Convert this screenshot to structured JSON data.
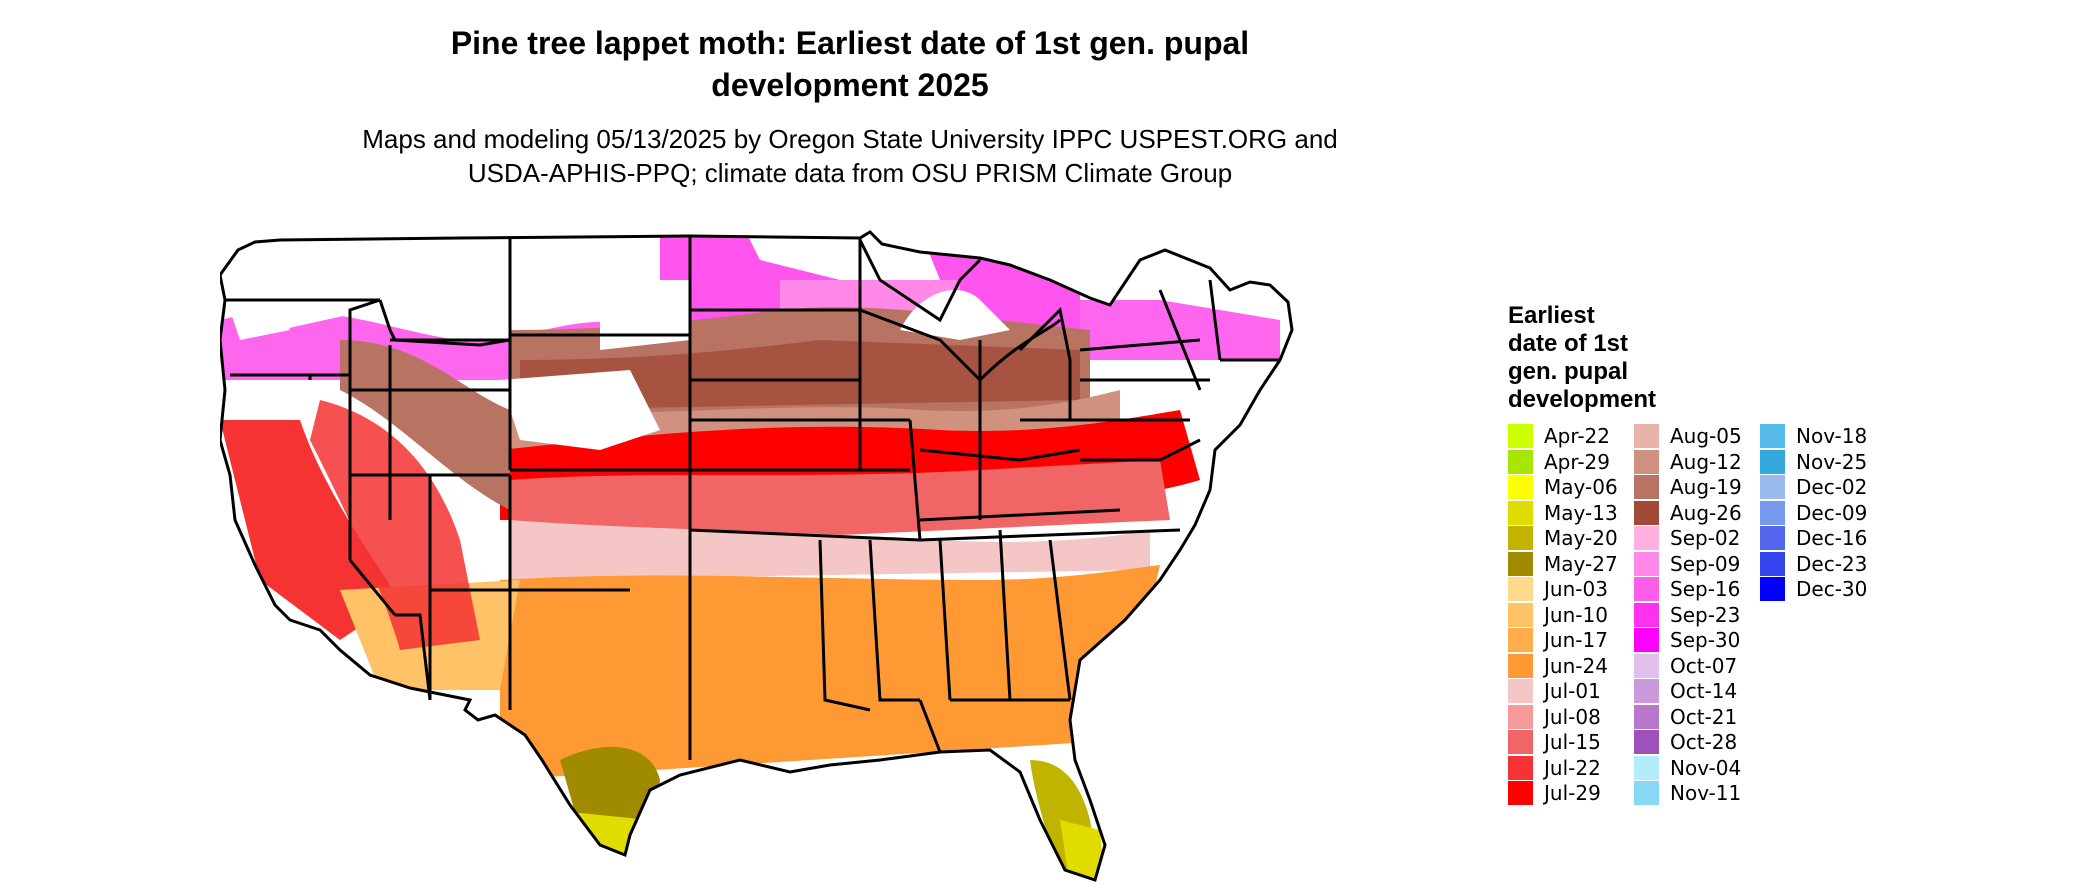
{
  "title": {
    "line1": "Pine tree lappet moth: Earliest date of 1st gen. pupal",
    "line2": "development 2025"
  },
  "subtitle": {
    "line1": "Maps and modeling 05/13/2025 by Oregon State University IPPC USPEST.ORG and",
    "line2": "USDA-APHIS-PPQ; climate data from OSU PRISM Climate Group"
  },
  "legend": {
    "title_lines": [
      "Earliest",
      "date of 1st",
      "gen. pupal",
      "development"
    ],
    "items": [
      {
        "label": "Apr-22",
        "color": "#ccff00"
      },
      {
        "label": "Apr-29",
        "color": "#a6e600"
      },
      {
        "label": "May-06",
        "color": "#ffff00"
      },
      {
        "label": "May-13",
        "color": "#e0dc00"
      },
      {
        "label": "May-20",
        "color": "#c0b400"
      },
      {
        "label": "May-27",
        "color": "#a08a00"
      },
      {
        "label": "Jun-03",
        "color": "#ffd98c"
      },
      {
        "label": "Jun-10",
        "color": "#ffc266"
      },
      {
        "label": "Jun-17",
        "color": "#ffad4a"
      },
      {
        "label": "Jun-24",
        "color": "#ff9933"
      },
      {
        "label": "Jul-01",
        "color": "#f5c6c6"
      },
      {
        "label": "Jul-08",
        "color": "#f59999"
      },
      {
        "label": "Jul-15",
        "color": "#f06666"
      },
      {
        "label": "Jul-22",
        "color": "#f53333"
      },
      {
        "label": "Jul-29",
        "color": "#ff0000"
      },
      {
        "label": "Aug-05",
        "color": "#e8b4aa"
      },
      {
        "label": "Aug-12",
        "color": "#d0917f"
      },
      {
        "label": "Aug-19",
        "color": "#b87363"
      },
      {
        "label": "Aug-26",
        "color": "#a04a36"
      },
      {
        "label": "Sep-02",
        "color": "#ffb0e0"
      },
      {
        "label": "Sep-09",
        "color": "#ff88e8"
      },
      {
        "label": "Sep-16",
        "color": "#ff5ce8"
      },
      {
        "label": "Sep-23",
        "color": "#ff30f0"
      },
      {
        "label": "Sep-30",
        "color": "#ff00ff"
      },
      {
        "label": "Oct-07",
        "color": "#e0bfec"
      },
      {
        "label": "Oct-14",
        "color": "#cc99dd"
      },
      {
        "label": "Oct-21",
        "color": "#b877cc"
      },
      {
        "label": "Oct-28",
        "color": "#a050bb"
      },
      {
        "label": "Nov-04",
        "color": "#b3ecfb"
      },
      {
        "label": "Nov-11",
        "color": "#88d8f5"
      },
      {
        "label": "Nov-18",
        "color": "#55bbea"
      },
      {
        "label": "Nov-25",
        "color": "#33aadd"
      },
      {
        "label": "Dec-02",
        "color": "#99bbee"
      },
      {
        "label": "Dec-09",
        "color": "#7799ee"
      },
      {
        "label": "Dec-16",
        "color": "#5566ee"
      },
      {
        "label": "Dec-23",
        "color": "#3344ee"
      },
      {
        "label": "Dec-30",
        "color": "#0000ff"
      }
    ]
  }
}
